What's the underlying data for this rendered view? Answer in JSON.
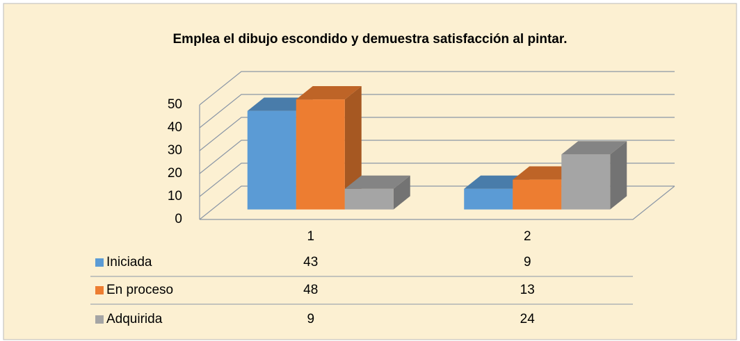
{
  "chart_data": {
    "type": "bar3d",
    "title": "Emplea el dibujo escondido y demuestra satisfacción al pintar.",
    "categories": [
      "1",
      "2"
    ],
    "series": [
      {
        "name": "Iniciada",
        "color": "#5b9bd5",
        "values": [
          43,
          9
        ]
      },
      {
        "name": "En proceso",
        "color": "#ed7d31",
        "values": [
          48,
          13
        ]
      },
      {
        "name": "Adquirida",
        "color": "#a5a5a5",
        "values": [
          9,
          24
        ]
      }
    ],
    "ylim": [
      0,
      50
    ],
    "yticks": [
      0,
      10,
      20,
      30,
      40,
      50
    ],
    "grid": true,
    "data_table": true
  }
}
